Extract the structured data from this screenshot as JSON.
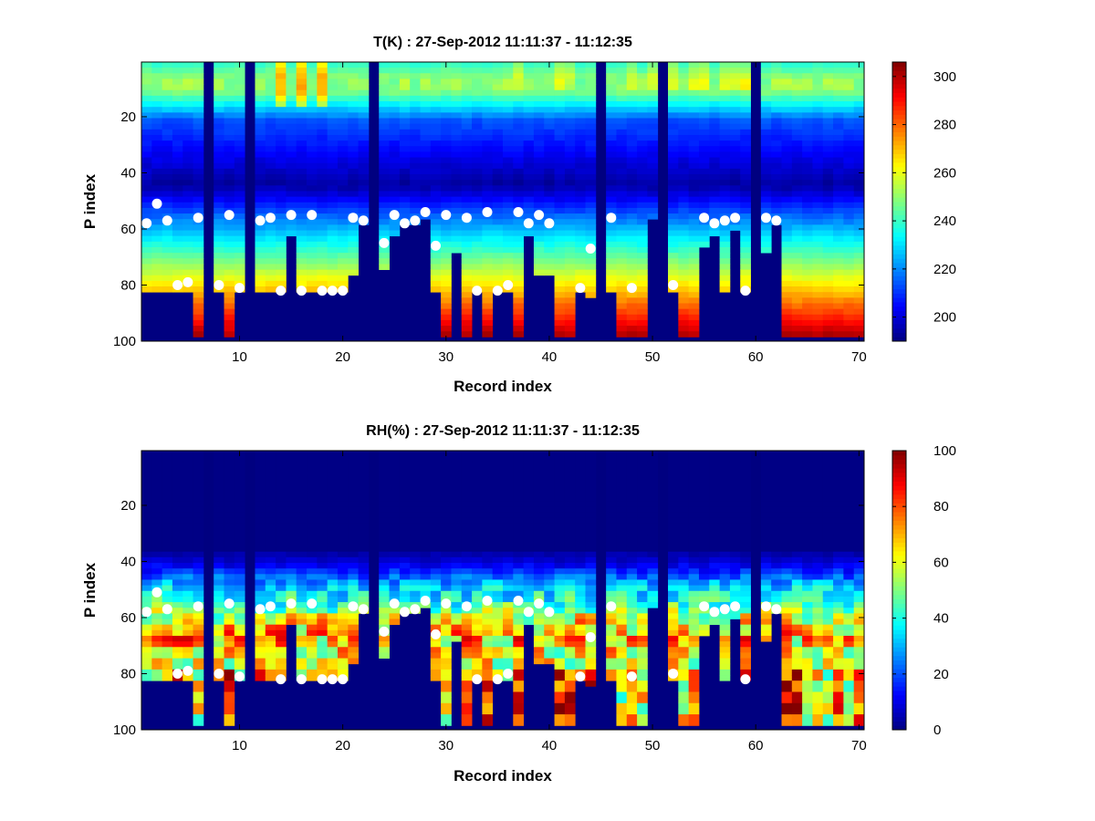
{
  "chart_data": [
    {
      "type": "heatmap",
      "title": "T(K) : 27-Sep-2012 11:11:37 - 11:12:35",
      "xlabel": "Record index",
      "ylabel": "P index",
      "xlim": [
        0.5,
        70.5
      ],
      "ylim": [
        0.5,
        100
      ],
      "y_reversed": true,
      "xticks": [
        10,
        20,
        30,
        40,
        50,
        60,
        70
      ],
      "yticks": [
        20,
        40,
        60,
        80,
        100
      ],
      "colorbar": {
        "min": 190,
        "max": 306,
        "ticks": [
          200,
          220,
          240,
          260,
          280,
          300
        ],
        "colormap": "jet"
      },
      "n_records": 70,
      "n_levels": 100,
      "surface_level": [
        81,
        81,
        81,
        81,
        81,
        98,
        98,
        82,
        98,
        82,
        56,
        82,
        82,
        82,
        62,
        82,
        82,
        82,
        82,
        82,
        76,
        57,
        98,
        74,
        62,
        58,
        58,
        55,
        82,
        98,
        68,
        98,
        82,
        98,
        82,
        82,
        98,
        62,
        75,
        76,
        98,
        98,
        82,
        84,
        56,
        82,
        98,
        98,
        98,
        56,
        56,
        82,
        98,
        98,
        66,
        62,
        82,
        60,
        82,
        56,
        68,
        58,
        98,
        98,
        98,
        98,
        98,
        98,
        98,
        98
      ],
      "missing_records": [
        7,
        11,
        23,
        45,
        51,
        60
      ],
      "markers": [
        {
          "x": 1,
          "y": 58
        },
        {
          "x": 2,
          "y": 51
        },
        {
          "x": 3,
          "y": 57
        },
        {
          "x": 4,
          "y": 80
        },
        {
          "x": 5,
          "y": 79
        },
        {
          "x": 6,
          "y": 56
        },
        {
          "x": 8,
          "y": 80
        },
        {
          "x": 9,
          "y": 55
        },
        {
          "x": 10,
          "y": 81
        },
        {
          "x": 12,
          "y": 57
        },
        {
          "x": 13,
          "y": 56
        },
        {
          "x": 14,
          "y": 82
        },
        {
          "x": 15,
          "y": 55
        },
        {
          "x": 16,
          "y": 82
        },
        {
          "x": 17,
          "y": 55
        },
        {
          "x": 18,
          "y": 82
        },
        {
          "x": 19,
          "y": 82
        },
        {
          "x": 20,
          "y": 82
        },
        {
          "x": 21,
          "y": 56
        },
        {
          "x": 22,
          "y": 57
        },
        {
          "x": 24,
          "y": 65
        },
        {
          "x": 25,
          "y": 55
        },
        {
          "x": 26,
          "y": 58
        },
        {
          "x": 27,
          "y": 57
        },
        {
          "x": 28,
          "y": 54
        },
        {
          "x": 29,
          "y": 66
        },
        {
          "x": 30,
          "y": 55
        },
        {
          "x": 32,
          "y": 56
        },
        {
          "x": 33,
          "y": 82
        },
        {
          "x": 34,
          "y": 54
        },
        {
          "x": 35,
          "y": 82
        },
        {
          "x": 36,
          "y": 80
        },
        {
          "x": 37,
          "y": 54
        },
        {
          "x": 38,
          "y": 58
        },
        {
          "x": 39,
          "y": 55
        },
        {
          "x": 40,
          "y": 58
        },
        {
          "x": 43,
          "y": 81
        },
        {
          "x": 44,
          "y": 67
        },
        {
          "x": 46,
          "y": 56
        },
        {
          "x": 48,
          "y": 81
        },
        {
          "x": 52,
          "y": 80
        },
        {
          "x": 55,
          "y": 56
        },
        {
          "x": 56,
          "y": 58
        },
        {
          "x": 57,
          "y": 57
        },
        {
          "x": 58,
          "y": 56
        },
        {
          "x": 59,
          "y": 82
        },
        {
          "x": 61,
          "y": 56
        },
        {
          "x": 62,
          "y": 57
        }
      ]
    },
    {
      "type": "heatmap",
      "title": "RH(%) : 27-Sep-2012 11:11:37 - 11:12:35",
      "xlabel": "Record index",
      "ylabel": "P index",
      "xlim": [
        0.5,
        70.5
      ],
      "ylim": [
        0.5,
        100
      ],
      "y_reversed": true,
      "xticks": [
        10,
        20,
        30,
        40,
        50,
        60,
        70
      ],
      "yticks": [
        20,
        40,
        60,
        80,
        100
      ],
      "colorbar": {
        "min": 0,
        "max": 100,
        "ticks": [
          0,
          20,
          40,
          60,
          80,
          100
        ],
        "colormap": "jet"
      },
      "n_records": 70,
      "n_levels": 100,
      "surface_level": [
        81,
        81,
        81,
        81,
        81,
        98,
        98,
        82,
        98,
        82,
        56,
        82,
        82,
        82,
        62,
        82,
        82,
        82,
        82,
        82,
        76,
        57,
        98,
        74,
        62,
        58,
        58,
        55,
        82,
        98,
        68,
        98,
        82,
        98,
        82,
        82,
        98,
        62,
        75,
        76,
        98,
        98,
        82,
        84,
        56,
        82,
        98,
        98,
        98,
        56,
        56,
        82,
        98,
        98,
        66,
        62,
        82,
        60,
        82,
        56,
        68,
        58,
        98,
        98,
        98,
        98,
        98,
        98,
        98,
        98
      ],
      "missing_records": [
        7,
        11,
        23,
        45,
        51,
        60
      ],
      "markers": [
        {
          "x": 1,
          "y": 58
        },
        {
          "x": 2,
          "y": 51
        },
        {
          "x": 3,
          "y": 57
        },
        {
          "x": 4,
          "y": 80
        },
        {
          "x": 5,
          "y": 79
        },
        {
          "x": 6,
          "y": 56
        },
        {
          "x": 8,
          "y": 80
        },
        {
          "x": 9,
          "y": 55
        },
        {
          "x": 10,
          "y": 81
        },
        {
          "x": 12,
          "y": 57
        },
        {
          "x": 13,
          "y": 56
        },
        {
          "x": 14,
          "y": 82
        },
        {
          "x": 15,
          "y": 55
        },
        {
          "x": 16,
          "y": 82
        },
        {
          "x": 17,
          "y": 55
        },
        {
          "x": 18,
          "y": 82
        },
        {
          "x": 19,
          "y": 82
        },
        {
          "x": 20,
          "y": 82
        },
        {
          "x": 21,
          "y": 56
        },
        {
          "x": 22,
          "y": 57
        },
        {
          "x": 24,
          "y": 65
        },
        {
          "x": 25,
          "y": 55
        },
        {
          "x": 26,
          "y": 58
        },
        {
          "x": 27,
          "y": 57
        },
        {
          "x": 28,
          "y": 54
        },
        {
          "x": 29,
          "y": 66
        },
        {
          "x": 30,
          "y": 55
        },
        {
          "x": 32,
          "y": 56
        },
        {
          "x": 33,
          "y": 82
        },
        {
          "x": 34,
          "y": 54
        },
        {
          "x": 35,
          "y": 82
        },
        {
          "x": 36,
          "y": 80
        },
        {
          "x": 37,
          "y": 54
        },
        {
          "x": 38,
          "y": 58
        },
        {
          "x": 39,
          "y": 55
        },
        {
          "x": 40,
          "y": 58
        },
        {
          "x": 43,
          "y": 81
        },
        {
          "x": 44,
          "y": 67
        },
        {
          "x": 46,
          "y": 56
        },
        {
          "x": 48,
          "y": 81
        },
        {
          "x": 52,
          "y": 80
        },
        {
          "x": 55,
          "y": 56
        },
        {
          "x": 56,
          "y": 58
        },
        {
          "x": 57,
          "y": 57
        },
        {
          "x": 58,
          "y": 56
        },
        {
          "x": 59,
          "y": 82
        },
        {
          "x": 61,
          "y": 56
        },
        {
          "x": 62,
          "y": 57
        }
      ]
    }
  ]
}
